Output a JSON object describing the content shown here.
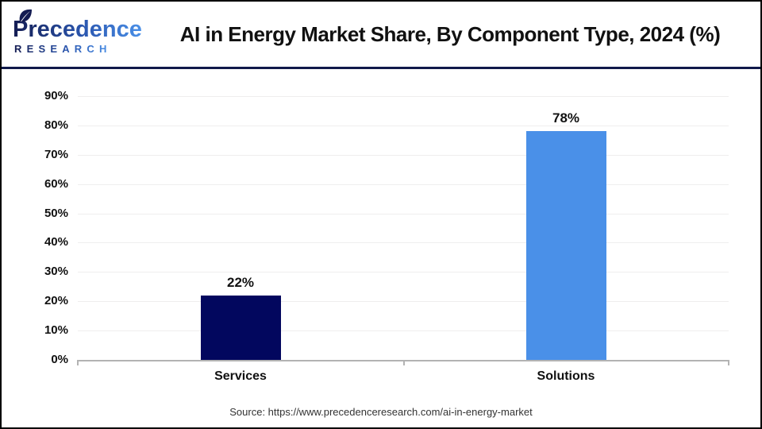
{
  "logo": {
    "name": "Precedence",
    "subtitle": "RESEARCH"
  },
  "source": {
    "text": "Source: https://www.precedenceresearch.com/ai-in-energy-market"
  },
  "colors": {
    "divider": "#10194A",
    "gridline": "#EFEEEE",
    "axis": "#B3B3B3",
    "logo_navy": "#141C52",
    "logo_blue": "#4A90E8"
  },
  "chart_data": {
    "type": "bar",
    "title": "AI in Energy Market Share, By Component Type, 2024 (%)",
    "categories": [
      "Services",
      "Solutions"
    ],
    "values": [
      22,
      78
    ],
    "value_labels": [
      "22%",
      "78%"
    ],
    "bar_colors": [
      "#02075E",
      "#4A90E8"
    ],
    "xlabel": "",
    "ylabel": "",
    "ylim": [
      0,
      90
    ],
    "ytick_step": 10,
    "ytick_labels": [
      "0%",
      "10%",
      "20%",
      "30%",
      "40%",
      "50%",
      "60%",
      "70%",
      "80%",
      "90%"
    ],
    "grid": "horizontal-only",
    "legend": "none"
  }
}
